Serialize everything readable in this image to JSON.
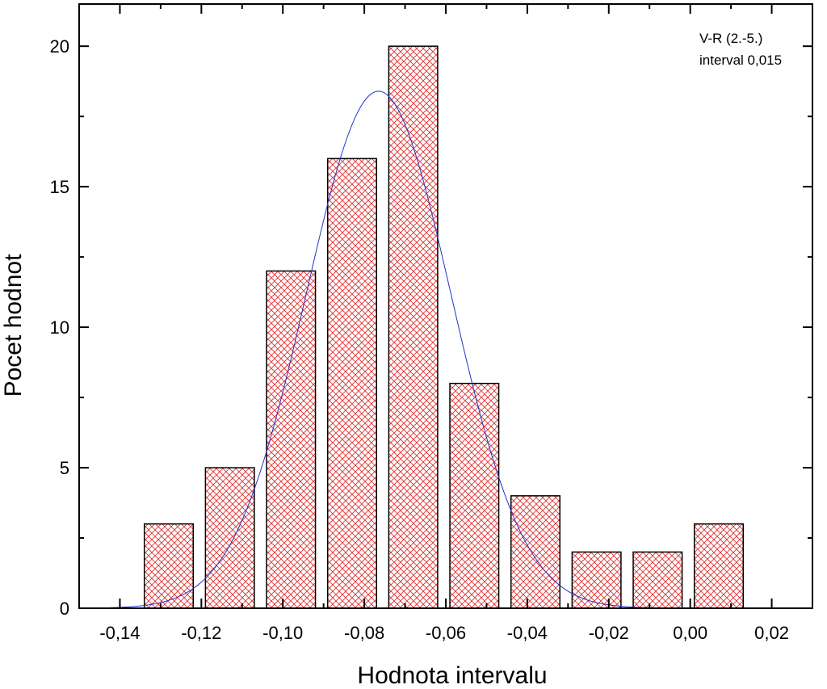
{
  "chart_data": {
    "type": "bar",
    "title": "",
    "xlabel": "Hodnota intervalu",
    "ylabel": "Pocet hodnot",
    "annotation_lines": [
      "V-R (2.-5.)",
      "interval 0,015"
    ],
    "x": [
      -0.128,
      -0.113,
      -0.098,
      -0.083,
      -0.068,
      -0.053,
      -0.038,
      -0.023,
      -0.008,
      0.007
    ],
    "bin_width": 0.012,
    "values": [
      3,
      5,
      12,
      16,
      20,
      8,
      4,
      2,
      2,
      3
    ],
    "xlim": [
      -0.15,
      0.03
    ],
    "ylim": [
      0,
      21.5
    ],
    "xticks": [
      -0.14,
      -0.12,
      -0.1,
      -0.08,
      -0.06,
      -0.04,
      -0.02,
      0.0,
      0.02
    ],
    "xtick_labels": [
      "-0,14",
      "-0,12",
      "-0,10",
      "-0,08",
      "-0,06",
      "-0,04",
      "-0,02",
      "0,00",
      "0,02"
    ],
    "yticks": [
      0,
      5,
      10,
      15,
      20
    ],
    "ytick_labels": [
      "0",
      "5",
      "10",
      "15",
      "20"
    ],
    "fit_curve": {
      "type": "gaussian",
      "amplitude": 18.4,
      "center": -0.0765,
      "sigma": 0.0178,
      "x_range": [
        -0.1425,
        -0.0025
      ]
    },
    "grid": false,
    "bar_fill": "crosshatch",
    "bar_color": "#e03030",
    "curve_color": "#2233cc"
  }
}
